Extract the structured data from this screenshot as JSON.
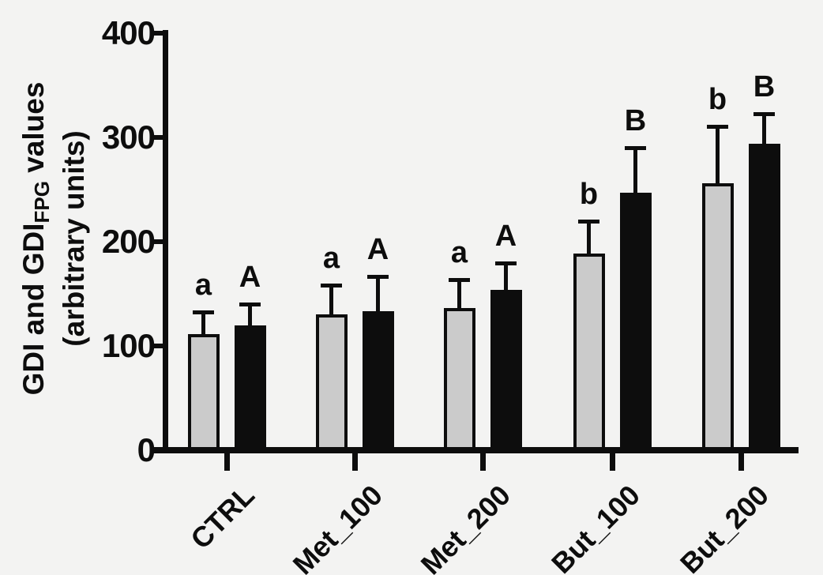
{
  "figure": {
    "background": "#f3f3f2",
    "ink_color": "#0d0d0d",
    "bar_gray_fill": "#cbcbcb",
    "bar_black_fill": "#0d0d0d",
    "y_axis": {
      "title": {
        "line1_pre": "GDI and GDI",
        "line1_sub": "FPG",
        "line1_post": " values",
        "line2": "(arbitrary units)"
      },
      "tick_values": [
        0,
        100,
        200,
        300,
        400
      ]
    }
  },
  "chart_data": {
    "type": "bar",
    "title": "",
    "xlabel": "",
    "ylabel": "GDI and GDI_FPG values (arbitrary units)",
    "ylim": [
      0,
      400
    ],
    "yticks": [
      0,
      100,
      200,
      300,
      400
    ],
    "grid": false,
    "legend_position": "none",
    "error_bars": "upper SD whisker with cap",
    "annotation_style": "significance letters above error bars",
    "categories": [
      "CTRL",
      "Met_100",
      "Met_200",
      "But_100",
      "But_200"
    ],
    "series": [
      {
        "name": "GDI (gray bars)",
        "fill": "#cbcbcb",
        "values": [
          111,
          130,
          136,
          189,
          256
        ],
        "sd": [
          23,
          30,
          29,
          32,
          56
        ],
        "letters": [
          "a",
          "a",
          "a",
          "b",
          "b"
        ]
      },
      {
        "name": "GDI_FPG (black bars)",
        "fill": "#0d0d0d",
        "values": [
          120,
          133,
          154,
          247,
          294
        ],
        "sd": [
          22,
          35,
          27,
          45,
          30
        ],
        "letters": [
          "A",
          "A",
          "A",
          "B",
          "B"
        ]
      }
    ]
  }
}
